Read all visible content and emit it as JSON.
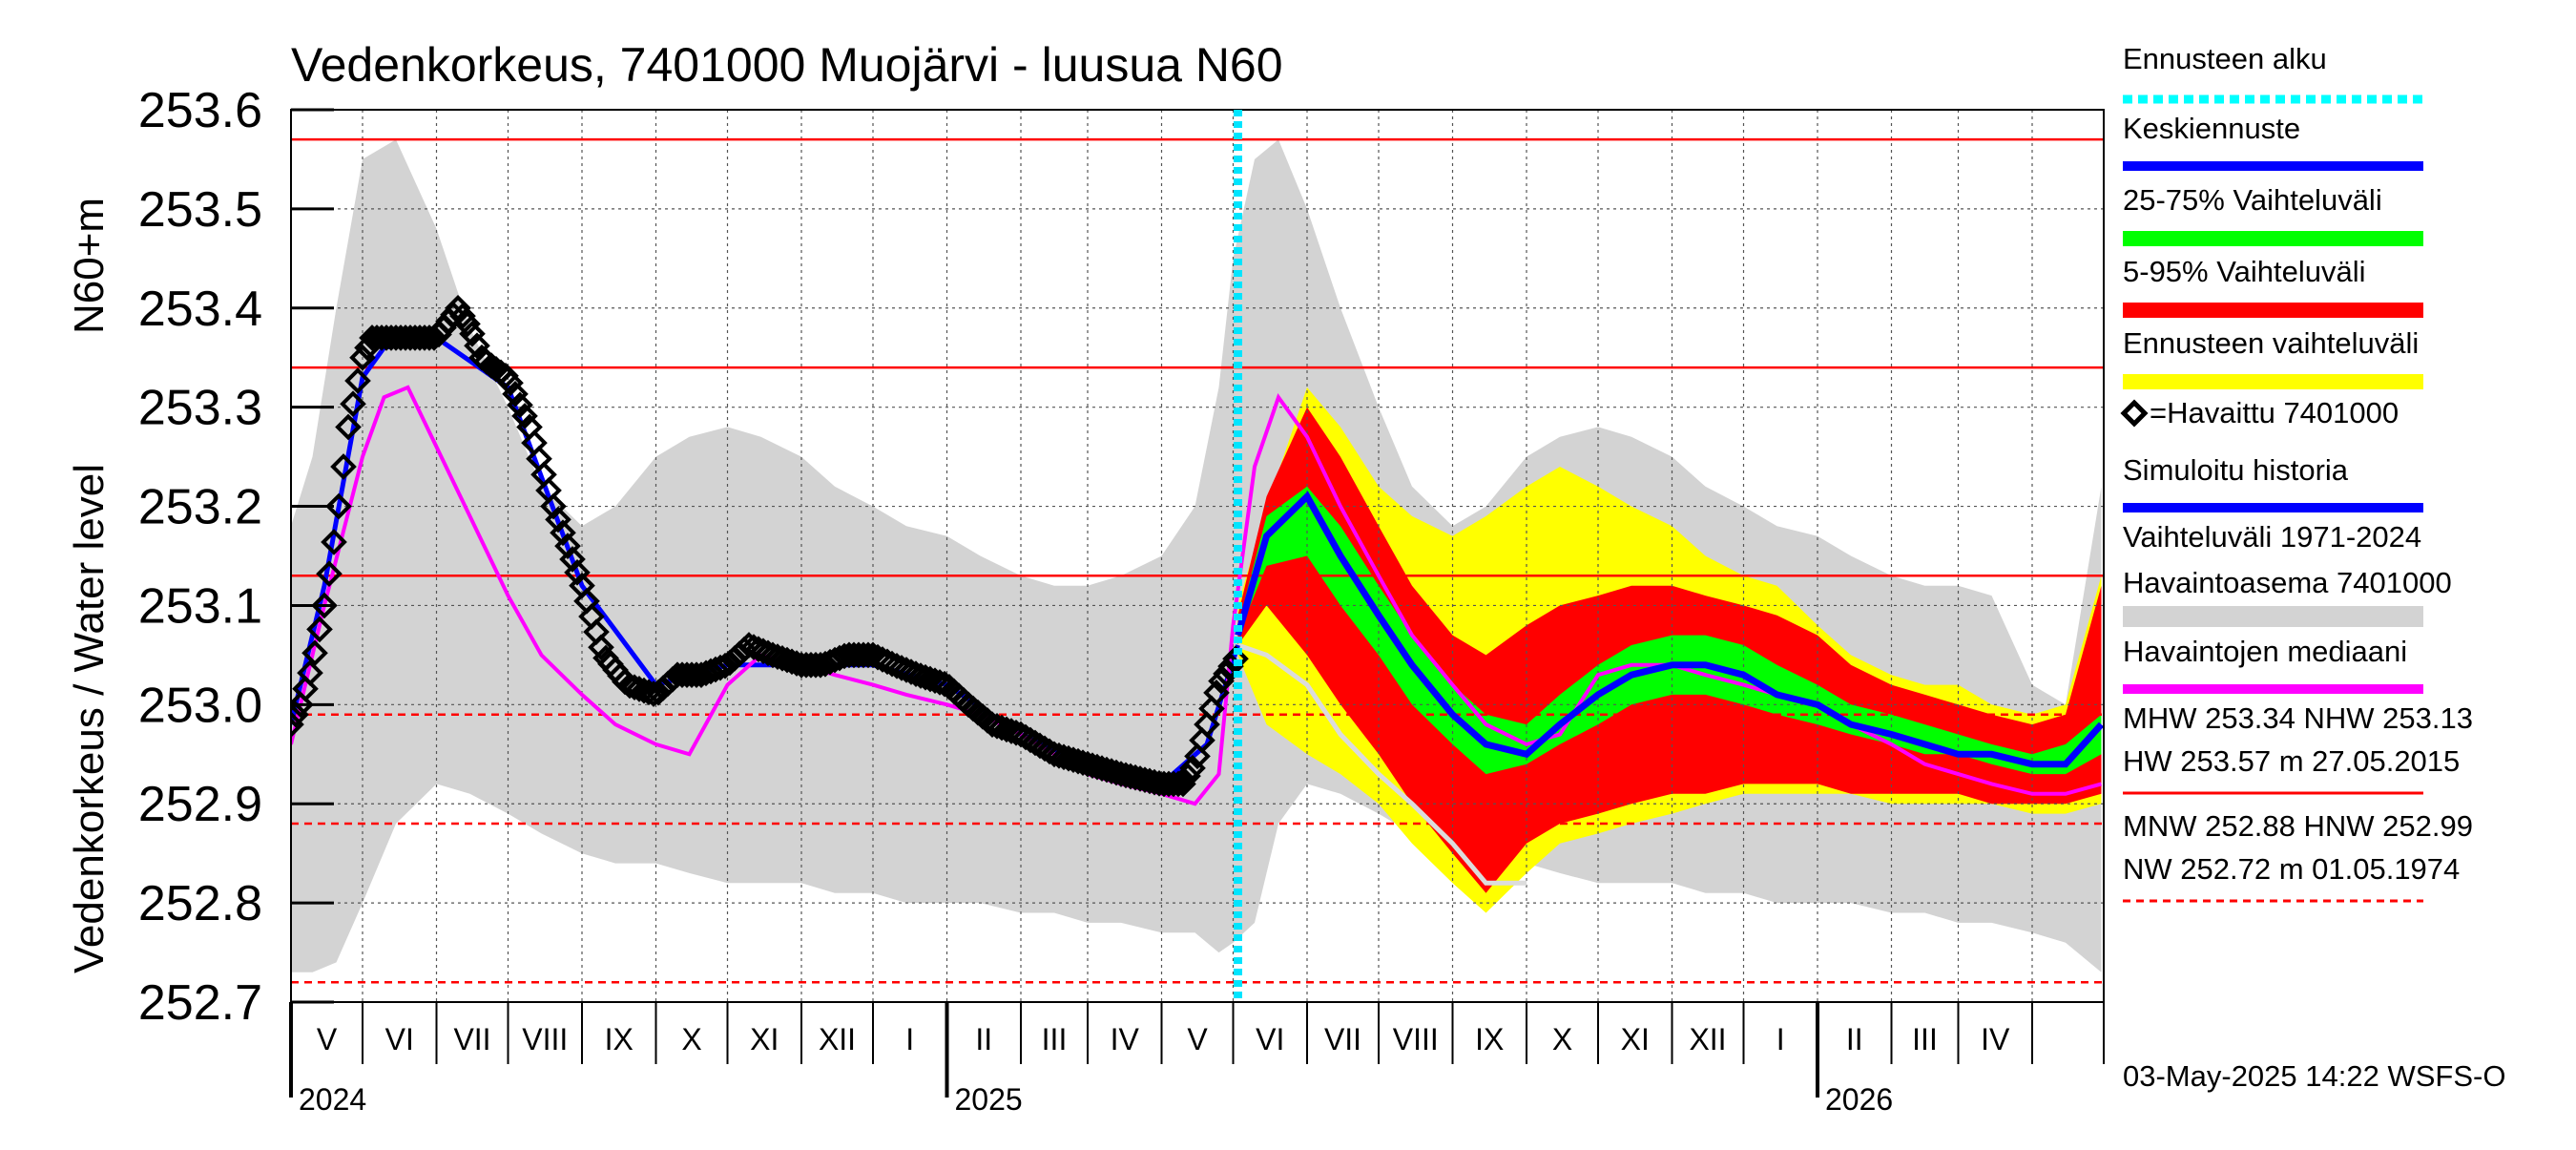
{
  "chart_data": {
    "type": "line",
    "title": "Vedenkorkeus, 7401000 Muojärvi - luusua N60",
    "ylabel": "Vedenkorkeus / Water level",
    "yunit": "N60+m",
    "ylim": [
      252.7,
      253.6
    ],
    "yticks": [
      "252.7",
      "252.8",
      "252.9",
      "253.0",
      "253.1",
      "253.2",
      "253.3",
      "253.4",
      "253.5",
      "253.6"
    ],
    "grid": true,
    "x_axis": {
      "type": "date",
      "range": [
        "2024-04-01",
        "2026-04-30"
      ],
      "month_labels": [
        "V",
        "VI",
        "VII",
        "VIII",
        "IX",
        "X",
        "XI",
        "XII",
        "I",
        "II",
        "III",
        "IV",
        "V",
        "VI",
        "VII",
        "VIII",
        "IX",
        "X",
        "XI",
        "XII",
        "I",
        "II",
        "III",
        "IV"
      ],
      "year_labels": [
        "2024",
        "2025",
        "2026"
      ],
      "year_starts": [
        "2024-04-01",
        "2025-01-01",
        "2026-01-01"
      ]
    },
    "forecast_start": "2025-05-03",
    "reference_lines": [
      {
        "name": "HW",
        "value": 253.57,
        "style": "solid",
        "color": "#ff0000"
      },
      {
        "name": "MHW",
        "value": 253.34,
        "style": "solid",
        "color": "#ff0000"
      },
      {
        "name": "NHW",
        "value": 253.13,
        "style": "solid",
        "color": "#ff0000"
      },
      {
        "name": "HNW",
        "value": 252.99,
        "style": "dashed",
        "color": "#ff0000"
      },
      {
        "name": "MNW",
        "value": 252.88,
        "style": "dashed",
        "color": "#ff0000"
      },
      {
        "name": "NW",
        "value": 252.72,
        "style": "dashed",
        "color": "#ff0000"
      }
    ],
    "historical_range_band": {
      "x": [
        "2024-04-01",
        "2024-04-10",
        "2024-04-20",
        "2024-05-01",
        "2024-05-15",
        "2024-06-01",
        "2024-06-15",
        "2024-07-01",
        "2024-07-15",
        "2024-08-01",
        "2024-08-15",
        "2024-09-01",
        "2024-09-15",
        "2024-10-01",
        "2024-10-15",
        "2024-11-01",
        "2024-11-15",
        "2024-12-01",
        "2024-12-15",
        "2025-01-01",
        "2025-01-15",
        "2025-02-01",
        "2025-02-15",
        "2025-03-01",
        "2025-03-15",
        "2025-04-01",
        "2025-04-15",
        "2025-04-25",
        "2025-05-01",
        "2025-05-10",
        "2025-05-20",
        "2025-06-01",
        "2025-06-15",
        "2025-07-01",
        "2025-07-15",
        "2025-08-01",
        "2025-08-15",
        "2025-09-01",
        "2025-09-15",
        "2025-10-01",
        "2025-10-15",
        "2025-11-01",
        "2025-11-15",
        "2025-12-01",
        "2025-12-15",
        "2026-01-01",
        "2026-01-15",
        "2026-02-01",
        "2026-02-15",
        "2026-03-01",
        "2026-03-15",
        "2026-04-01",
        "2026-04-15",
        "2026-04-30"
      ],
      "low": [
        252.73,
        252.73,
        252.74,
        252.8,
        252.88,
        252.92,
        252.91,
        252.89,
        252.87,
        252.85,
        252.84,
        252.84,
        252.83,
        252.82,
        252.82,
        252.82,
        252.81,
        252.81,
        252.8,
        252.8,
        252.8,
        252.79,
        252.79,
        252.78,
        252.78,
        252.77,
        252.77,
        252.75,
        252.76,
        252.78,
        252.88,
        252.92,
        252.91,
        252.89,
        252.87,
        252.85,
        252.84,
        252.84,
        252.83,
        252.82,
        252.82,
        252.82,
        252.81,
        252.81,
        252.8,
        252.8,
        252.8,
        252.79,
        252.79,
        252.78,
        252.78,
        252.77,
        252.76,
        252.73
      ],
      "high": [
        253.18,
        253.25,
        253.4,
        253.55,
        253.57,
        253.48,
        253.38,
        253.3,
        253.22,
        253.18,
        253.2,
        253.25,
        253.27,
        253.28,
        253.27,
        253.25,
        253.22,
        253.2,
        253.18,
        253.17,
        253.15,
        253.13,
        253.12,
        253.12,
        253.13,
        253.15,
        253.2,
        253.32,
        253.45,
        253.55,
        253.57,
        253.5,
        253.4,
        253.3,
        253.22,
        253.18,
        253.2,
        253.25,
        253.27,
        253.28,
        253.27,
        253.25,
        253.22,
        253.2,
        253.18,
        253.17,
        253.15,
        253.13,
        253.12,
        253.12,
        253.11,
        253.02,
        253.0,
        253.22
      ]
    },
    "forecast_range_band": {
      "x": [
        "2025-05-03",
        "2025-05-15",
        "2025-06-01",
        "2025-06-15",
        "2025-07-01",
        "2025-07-15",
        "2025-08-01",
        "2025-08-15",
        "2025-09-01",
        "2025-09-15",
        "2025-10-01",
        "2025-10-15",
        "2025-11-01",
        "2025-11-15",
        "2025-12-01",
        "2025-12-15",
        "2026-01-01",
        "2026-01-15",
        "2026-02-01",
        "2026-02-15",
        "2026-03-01",
        "2026-03-15",
        "2026-04-01",
        "2026-04-15",
        "2026-04-30"
      ],
      "low": [
        253.05,
        252.98,
        252.95,
        252.93,
        252.9,
        252.86,
        252.82,
        252.79,
        252.83,
        252.86,
        252.87,
        252.88,
        252.89,
        252.9,
        252.91,
        252.91,
        252.91,
        252.91,
        252.9,
        252.9,
        252.9,
        252.9,
        252.89,
        252.89,
        252.9
      ],
      "high": [
        253.1,
        253.2,
        253.32,
        253.28,
        253.22,
        253.19,
        253.17,
        253.19,
        253.22,
        253.24,
        253.22,
        253.2,
        253.18,
        253.15,
        253.13,
        253.12,
        253.08,
        253.05,
        253.03,
        253.02,
        253.02,
        253.0,
        252.99,
        253.0,
        253.13
      ]
    },
    "forecast_p5_p95": {
      "x": [
        "2025-05-03",
        "2025-05-15",
        "2025-06-01",
        "2025-06-15",
        "2025-07-01",
        "2025-07-15",
        "2025-08-01",
        "2025-08-15",
        "2025-09-01",
        "2025-09-15",
        "2025-10-01",
        "2025-10-15",
        "2025-11-01",
        "2025-11-15",
        "2025-12-01",
        "2025-12-15",
        "2026-01-01",
        "2026-01-15",
        "2026-02-01",
        "2026-02-15",
        "2026-03-01",
        "2026-03-15",
        "2026-04-01",
        "2026-04-15",
        "2026-04-30"
      ],
      "low": [
        253.06,
        253.1,
        253.05,
        253.0,
        252.95,
        252.9,
        252.85,
        252.81,
        252.86,
        252.88,
        252.89,
        252.9,
        252.91,
        252.91,
        252.92,
        252.92,
        252.92,
        252.91,
        252.91,
        252.91,
        252.91,
        252.9,
        252.9,
        252.9,
        252.91
      ],
      "high": [
        253.09,
        253.21,
        253.3,
        253.25,
        253.18,
        253.12,
        253.07,
        253.05,
        253.08,
        253.1,
        253.11,
        253.12,
        253.12,
        253.11,
        253.1,
        253.09,
        253.07,
        253.04,
        253.02,
        253.01,
        253.0,
        252.99,
        252.98,
        252.99,
        253.12
      ]
    },
    "forecast_p25_p75": {
      "x": [
        "2025-05-03",
        "2025-05-15",
        "2025-06-01",
        "2025-06-15",
        "2025-07-01",
        "2025-07-15",
        "2025-08-01",
        "2025-08-15",
        "2025-09-01",
        "2025-09-15",
        "2025-10-01",
        "2025-10-15",
        "2025-11-01",
        "2025-11-15",
        "2025-12-01",
        "2025-12-15",
        "2026-01-01",
        "2026-01-15",
        "2026-02-01",
        "2026-02-15",
        "2026-03-01",
        "2026-03-15",
        "2026-04-01",
        "2026-04-15",
        "2026-04-30"
      ],
      "low": [
        253.07,
        253.14,
        253.15,
        253.1,
        253.05,
        253.0,
        252.96,
        252.93,
        252.94,
        252.96,
        252.98,
        253.0,
        253.01,
        253.01,
        253.0,
        252.99,
        252.98,
        252.97,
        252.96,
        252.95,
        252.95,
        252.94,
        252.93,
        252.93,
        252.95
      ],
      "high": [
        253.08,
        253.19,
        253.22,
        253.18,
        253.12,
        253.07,
        253.02,
        252.99,
        252.98,
        253.01,
        253.04,
        253.06,
        253.07,
        253.07,
        253.06,
        253.04,
        253.02,
        253.0,
        252.99,
        252.98,
        252.97,
        252.96,
        252.95,
        252.96,
        252.99
      ]
    },
    "series": [
      {
        "name": "=Havaittu 7401000",
        "role": "observed",
        "marker": "diamond",
        "color": "#000000",
        "x": [
          "2024-04-01",
          "2024-04-05",
          "2024-04-10",
          "2024-04-15",
          "2024-04-20",
          "2024-04-25",
          "2024-05-01",
          "2024-05-05",
          "2024-05-10",
          "2024-05-20",
          "2024-06-01",
          "2024-06-10",
          "2024-06-15",
          "2024-06-20",
          "2024-06-25",
          "2024-07-01",
          "2024-07-10",
          "2024-07-20",
          "2024-08-01",
          "2024-08-10",
          "2024-08-20",
          "2024-09-01",
          "2024-09-10",
          "2024-09-20",
          "2024-10-01",
          "2024-10-10",
          "2024-10-20",
          "2024-11-01",
          "2024-11-10",
          "2024-11-20",
          "2024-12-01",
          "2024-12-10",
          "2024-12-20",
          "2025-01-01",
          "2025-01-10",
          "2025-01-20",
          "2025-02-01",
          "2025-02-15",
          "2025-03-01",
          "2025-03-15",
          "2025-04-01",
          "2025-04-10",
          "2025-04-15",
          "2025-04-20",
          "2025-04-25",
          "2025-05-03"
        ],
        "values": [
          252.98,
          253.0,
          253.04,
          253.1,
          253.18,
          253.28,
          253.35,
          253.37,
          253.37,
          253.37,
          253.37,
          253.4,
          253.38,
          253.35,
          253.34,
          253.33,
          253.28,
          253.2,
          253.12,
          253.05,
          253.02,
          253.01,
          253.03,
          253.03,
          253.04,
          253.06,
          253.05,
          253.04,
          253.04,
          253.05,
          253.05,
          253.04,
          253.03,
          253.02,
          253.0,
          252.98,
          252.97,
          252.95,
          252.94,
          252.93,
          252.92,
          252.92,
          252.94,
          252.98,
          253.02,
          253.05
        ]
      },
      {
        "name": "Havaintojen mediaani",
        "role": "median",
        "color": "#ff00ff",
        "x": [
          "2024-04-01",
          "2024-04-15",
          "2024-05-01",
          "2024-05-10",
          "2024-05-20",
          "2024-06-01",
          "2024-06-15",
          "2024-07-01",
          "2024-07-15",
          "2024-08-01",
          "2024-08-15",
          "2024-09-01",
          "2024-09-15",
          "2024-10-01",
          "2024-10-15",
          "2024-11-01",
          "2024-11-15",
          "2024-12-01",
          "2024-12-15",
          "2025-01-01",
          "2025-01-15",
          "2025-02-01",
          "2025-02-15",
          "2025-03-01",
          "2025-03-15",
          "2025-04-01",
          "2025-04-15",
          "2025-04-25",
          "2025-05-01",
          "2025-05-10",
          "2025-05-20",
          "2025-06-01",
          "2025-06-15",
          "2025-07-01",
          "2025-07-15",
          "2025-08-01",
          "2025-08-15",
          "2025-09-01",
          "2025-09-15",
          "2025-10-01",
          "2025-10-15",
          "2025-11-01",
          "2025-11-15",
          "2025-12-01",
          "2025-12-15",
          "2026-01-01",
          "2026-01-15",
          "2026-02-01",
          "2026-02-15",
          "2026-03-01",
          "2026-03-15",
          "2026-04-01",
          "2026-04-15",
          "2026-04-30"
        ],
        "values": [
          252.96,
          253.1,
          253.25,
          253.31,
          253.32,
          253.26,
          253.19,
          253.11,
          253.05,
          253.01,
          252.98,
          252.96,
          252.95,
          253.02,
          253.05,
          253.04,
          253.03,
          253.02,
          253.01,
          253.0,
          252.99,
          252.97,
          252.95,
          252.93,
          252.92,
          252.91,
          252.9,
          252.93,
          253.08,
          253.24,
          253.31,
          253.27,
          253.2,
          253.13,
          253.07,
          253.02,
          252.98,
          252.96,
          252.97,
          253.03,
          253.04,
          253.04,
          253.03,
          253.02,
          253.01,
          253.0,
          252.98,
          252.96,
          252.94,
          252.93,
          252.92,
          252.91,
          252.91,
          252.92
        ]
      },
      {
        "name": "Simuloitu historia",
        "role": "simulated",
        "color": "#0000ff",
        "x": [
          "2024-04-01",
          "2024-04-15",
          "2024-05-01",
          "2024-05-10",
          "2024-06-01",
          "2024-07-01",
          "2024-08-01",
          "2024-09-01",
          "2024-10-01",
          "2024-11-01",
          "2024-12-01",
          "2025-01-01",
          "2025-02-01",
          "2025-03-01",
          "2025-04-01",
          "2025-04-20",
          "2025-05-03"
        ],
        "values": [
          252.98,
          253.12,
          253.33,
          253.36,
          253.37,
          253.32,
          253.12,
          253.02,
          253.04,
          253.04,
          253.04,
          253.02,
          252.97,
          252.94,
          252.92,
          252.96,
          253.06
        ]
      },
      {
        "name": "Keskiennuste",
        "role": "forecast-mean",
        "color": "#0000ff",
        "x": [
          "2025-05-03",
          "2025-05-15",
          "2025-06-01",
          "2025-06-15",
          "2025-07-01",
          "2025-07-15",
          "2025-08-01",
          "2025-08-15",
          "2025-09-01",
          "2025-09-15",
          "2025-10-01",
          "2025-10-15",
          "2025-11-01",
          "2025-11-15",
          "2025-12-01",
          "2025-12-15",
          "2026-01-01",
          "2026-01-15",
          "2026-02-01",
          "2026-02-15",
          "2026-03-01",
          "2026-03-15",
          "2026-04-01",
          "2026-04-15",
          "2026-04-30"
        ],
        "values": [
          253.07,
          253.17,
          253.21,
          253.15,
          253.09,
          253.04,
          252.99,
          252.96,
          252.95,
          252.98,
          253.01,
          253.03,
          253.04,
          253.04,
          253.03,
          253.01,
          253.0,
          252.98,
          252.97,
          252.96,
          252.95,
          252.95,
          252.94,
          252.94,
          252.98
        ]
      },
      {
        "name": "",
        "role": "single-scenario",
        "color": "#dcdcdc",
        "x": [
          "2025-05-03",
          "2025-05-15",
          "2025-06-01",
          "2025-06-15",
          "2025-07-01",
          "2025-07-15",
          "2025-08-01",
          "2025-08-15",
          "2025-09-01"
        ],
        "values": [
          253.06,
          253.05,
          253.02,
          252.97,
          252.93,
          252.9,
          252.86,
          252.82,
          252.82
        ]
      }
    ],
    "legend": {
      "placement": "right",
      "items": [
        {
          "label": "Ennusteen alku",
          "color": "#00ffff",
          "style": "dotted"
        },
        {
          "label": "Keskiennuste",
          "color": "#0000ff",
          "style": "line"
        },
        {
          "label": "25-75% Vaihteluväli",
          "color": "#00ff00",
          "style": "band"
        },
        {
          "label": "5-95% Vaihteluväli",
          "color": "#ff0000",
          "style": "band"
        },
        {
          "label": "Ennusteen vaihteluväli",
          "color": "#ffff00",
          "style": "band"
        },
        {
          "label": "=Havaittu 7401000",
          "color": "#000000",
          "style": "diamond"
        },
        {
          "label": "Simuloitu historia",
          "color": "#0000ff",
          "style": "line"
        },
        {
          "label": "Vaihteluväli 1971-2024",
          "label2": " Havaintoasema 7401000",
          "color": "#d3d3d3",
          "style": "band"
        },
        {
          "label": "Havaintojen mediaani",
          "color": "#ff00ff",
          "style": "line"
        }
      ],
      "stats": [
        {
          "line1": "MHW 253.34 NHW 253.13",
          "line2": "HW 253.57 m 27.05.2015",
          "color": "#ff0000",
          "style": "solid"
        },
        {
          "line1": "MNW 252.88 HNW 252.99",
          "line2": "NW 252.72 m 01.05.1974",
          "color": "#ff0000",
          "style": "dashed"
        }
      ]
    },
    "footer": "03-May-2025 14:22 WSFS-O"
  }
}
